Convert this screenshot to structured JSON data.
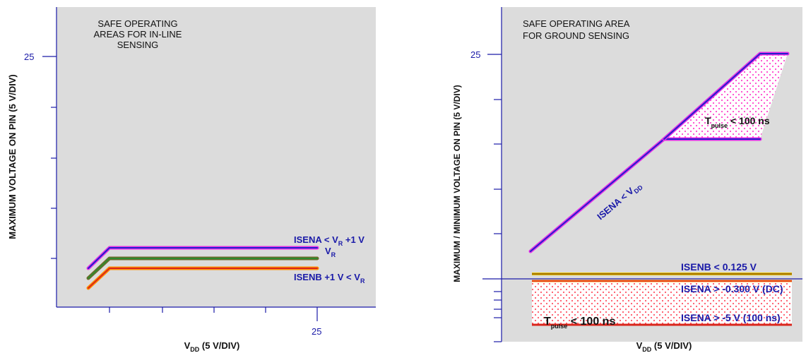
{
  "charts": {
    "left": {
      "title_lines": [
        "SAFE OPERATING",
        "AREAS FOR IN-LINE",
        "SENSING"
      ],
      "ylabel": "MAXIMUM VOLTAGE ON PIN (5 V/DIV)",
      "xlabel_main": "V",
      "xlabel_sub": "DD",
      "xlabel_rest": " (5 V/DIV)",
      "y_tick_label": "25",
      "x_tick_label": "25",
      "labels": {
        "isena_a": "ISENA < V",
        "isena_sub": "R",
        "isena_b": " +1 V",
        "vr_a": "V",
        "vr_sub": "R",
        "isenb_a": "ISENB +1 V < V",
        "isenb_sub": "R"
      }
    },
    "right": {
      "title_lines": [
        "SAFE OPERATING AREA",
        "FOR GROUND SENSING"
      ],
      "ylabel": "MAXIMUM / MINIMUM VOLTAGE ON PIN (5 V/DIV)",
      "xlabel_main": "V",
      "xlabel_sub": "DD",
      "xlabel_rest": " (5 V/DIV)",
      "y_tick_label": "25",
      "labels": {
        "tpulse_top_a": "T",
        "tpulse_top_sub": "pulse",
        "tpulse_top_b": " < 100 ns",
        "isena_vdd_a": "ISENA < V",
        "isena_vdd_sub": "DD",
        "isenb": "ISENB < 0.125 V",
        "isena_dc": "ISENA > -0.300 V (DC)",
        "isena_pulse": "ISENA > -5 V (100 ns)",
        "tpulse_bot_a": "T",
        "tpulse_bot_sub": "pulse",
        "tpulse_bot_b": " < 100 ns"
      }
    }
  },
  "colors": {
    "panel": "#dcdcdc",
    "axis": "#1a1aa8",
    "magenta": "#e62ee6",
    "blue": "#2222cc",
    "olive": "#6b6b2a",
    "green": "#2e8b2e",
    "orange": "#ff8c00",
    "red": "#d9261c",
    "yellow": "#e8c400",
    "brown": "#8b5a00",
    "pink": "#ff66cc"
  },
  "chart_data": [
    {
      "type": "line",
      "name": "in-line sensing",
      "ylabel": "MAXIMUM VOLTAGE ON PIN (5 V/DIV)",
      "xlabel": "VDD (5 V/DIV)",
      "x_tick_labels": [
        "25"
      ],
      "y_tick_labels": [
        "25"
      ],
      "series": [
        {
          "name": "ISENA < VR +1 V"
        },
        {
          "name": "VR"
        },
        {
          "name": "ISENB +1 V < VR"
        }
      ]
    },
    {
      "type": "area",
      "name": "ground sensing",
      "ylabel": "MAXIMUM / MINIMUM VOLTAGE ON PIN (5 V/DIV)",
      "xlabel": "VDD (5 V/DIV)",
      "y_tick_labels": [
        "25"
      ],
      "series": [
        {
          "name": "ISENA < VDD"
        },
        {
          "name": "ISENB < 0.125 V"
        },
        {
          "name": "ISENA > -0.300 V (DC)"
        },
        {
          "name": "ISENA > -5 V (100 ns)"
        }
      ],
      "regions": [
        "Tpulse < 100 ns (top)",
        "Tpulse < 100 ns (bottom)"
      ]
    }
  ]
}
